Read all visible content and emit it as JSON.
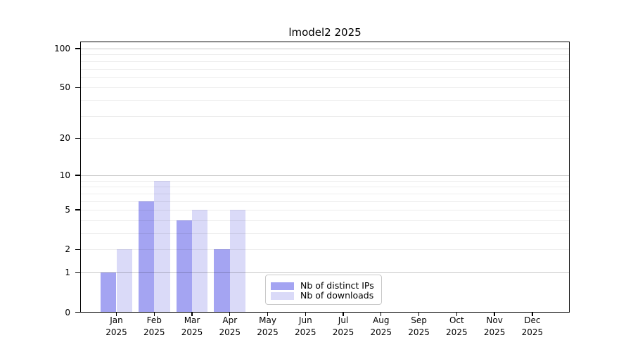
{
  "chart_data": {
    "type": "bar",
    "title": "lmodel2 2025",
    "x_categories": [
      "Jan",
      "Feb",
      "Mar",
      "Apr",
      "May",
      "Jun",
      "Jul",
      "Aug",
      "Sep",
      "Oct",
      "Nov",
      "Dec"
    ],
    "x_year_label": "2025",
    "series": [
      {
        "name": "Nb of distinct IPs",
        "color": "#a4a4f2",
        "values": [
          1,
          6,
          4,
          2,
          0,
          0,
          0,
          0,
          0,
          0,
          0,
          0
        ]
      },
      {
        "name": "Nb of downloads",
        "color": "#dadaf8",
        "values": [
          2,
          9,
          5,
          5,
          0,
          0,
          0,
          0,
          0,
          0,
          0,
          0
        ]
      }
    ],
    "y_axis": {
      "scale": "log10(1+x)",
      "range": [
        0,
        100
      ],
      "ticks": [
        0,
        1,
        2,
        5,
        10,
        20,
        50,
        100
      ],
      "major_gridlines": [
        1,
        10,
        100
      ],
      "minor_gridlines": [
        2,
        3,
        4,
        5,
        6,
        7,
        8,
        9,
        20,
        30,
        40,
        50,
        60,
        70,
        80,
        90
      ]
    },
    "legend": {
      "position": "lower center"
    },
    "grid": true
  }
}
